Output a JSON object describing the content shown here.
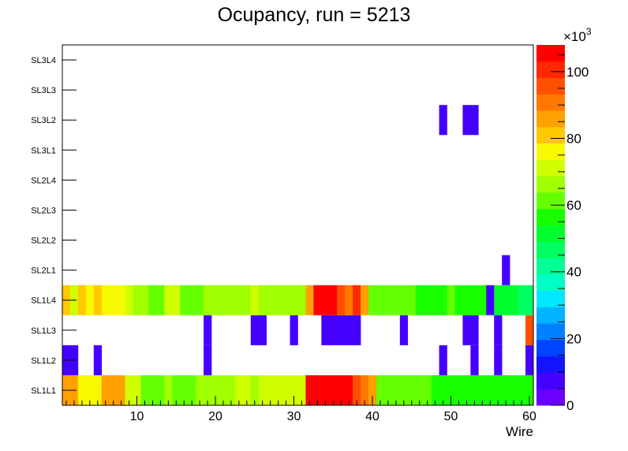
{
  "chart_data": {
    "type": "heatmap",
    "title": "Ocupancy, run = 5213",
    "xlabel": "Wire",
    "xlim": [
      0.5,
      60.5
    ],
    "x_ticks": [
      10,
      20,
      30,
      40,
      50,
      60
    ],
    "y_categories": [
      "SL1L1",
      "SL1L2",
      "SL1L3",
      "SL1L4",
      "SL2L1",
      "SL2L2",
      "SL2L3",
      "SL2L4",
      "SL3L1",
      "SL3L2",
      "SL3L3",
      "SL3L4"
    ],
    "zlim": [
      0,
      108000
    ],
    "z_ticks": [
      "0",
      "20",
      "40",
      "60",
      "80",
      "100"
    ],
    "z_exponent_base": "×10",
    "z_exponent_power": "3",
    "palette": [
      "#6a00ff",
      "#4400ff",
      "#1414ff",
      "#0044ff",
      "#0080ff",
      "#00b4ff",
      "#00e8ff",
      "#00ffc4",
      "#00ff94",
      "#00ff60",
      "#00ff2c",
      "#18ff00",
      "#64ff00",
      "#a0ff00",
      "#d0ff00",
      "#f8f800",
      "#ffc800",
      "#ffa000",
      "#ff7800",
      "#ff5000",
      "#ff2800",
      "#ff0000"
    ],
    "rows": {
      "SL1L1": [
        85,
        85,
        74,
        74,
        74,
        85,
        85,
        85,
        72,
        69,
        62,
        62,
        62,
        66,
        62,
        59,
        62,
        66,
        66,
        66,
        66,
        66,
        69,
        69,
        66,
        69,
        69,
        69,
        69,
        69,
        69,
        108,
        108,
        108,
        108,
        108,
        105,
        98,
        92,
        85,
        62,
        62,
        62,
        62,
        59,
        59,
        59,
        55,
        55,
        55,
        55,
        55,
        55,
        55,
        55,
        55,
        55,
        55,
        55,
        55
      ],
      "SL1L2": [
        5,
        5,
        0,
        0,
        5,
        0,
        0,
        0,
        0,
        0,
        0,
        0,
        0,
        0,
        0,
        0,
        0,
        0,
        5,
        0,
        0,
        0,
        0,
        0,
        0,
        0,
        0,
        0,
        0,
        0,
        0,
        0,
        0,
        0,
        0,
        0,
        0,
        0,
        0,
        0,
        0,
        0,
        0,
        0,
        0,
        0,
        0,
        0,
        5,
        0,
        0,
        0,
        5,
        0,
        0,
        5,
        0,
        0,
        0,
        5
      ],
      "SL1L3": [
        0,
        0,
        0,
        0,
        0,
        0,
        0,
        0,
        0,
        0,
        0,
        0,
        0,
        0,
        0,
        0,
        0,
        0,
        5,
        0,
        0,
        0,
        0,
        0,
        5,
        5,
        0,
        0,
        0,
        5,
        0,
        0,
        0,
        5,
        5,
        5,
        5,
        5,
        0,
        0,
        0,
        0,
        0,
        5,
        0,
        0,
        0,
        0,
        0,
        0,
        0,
        5,
        5,
        0,
        0,
        5,
        0,
        0,
        0,
        95
      ],
      "SL1L4": [
        80,
        72,
        80,
        74,
        80,
        74,
        74,
        74,
        69,
        66,
        66,
        62,
        62,
        69,
        69,
        62,
        62,
        62,
        66,
        66,
        66,
        66,
        66,
        66,
        69,
        66,
        66,
        66,
        66,
        66,
        66,
        85,
        105,
        105,
        108,
        98,
        92,
        102,
        85,
        62,
        62,
        62,
        62,
        59,
        59,
        55,
        55,
        55,
        55,
        59,
        55,
        55,
        55,
        55,
        5,
        52,
        52,
        52,
        45,
        45
      ],
      "SL2L1": [
        0,
        0,
        0,
        0,
        0,
        0,
        0,
        0,
        0,
        0,
        0,
        0,
        0,
        0,
        0,
        0,
        0,
        0,
        0,
        0,
        0,
        0,
        0,
        0,
        0,
        0,
        0,
        0,
        0,
        0,
        0,
        0,
        0,
        0,
        0,
        0,
        0,
        0,
        0,
        0,
        0,
        0,
        0,
        0,
        0,
        0,
        0,
        0,
        0,
        0,
        0,
        0,
        0,
        0,
        0,
        0,
        5,
        0,
        0,
        0
      ],
      "SL2L2": [
        0,
        0,
        0,
        0,
        0,
        0,
        0,
        0,
        0,
        0,
        0,
        0,
        0,
        0,
        0,
        0,
        0,
        0,
        0,
        0,
        0,
        0,
        0,
        0,
        0,
        0,
        0,
        0,
        0,
        0,
        0,
        0,
        0,
        0,
        0,
        0,
        0,
        0,
        0,
        0,
        0,
        0,
        0,
        0,
        0,
        0,
        0,
        0,
        0,
        0,
        0,
        0,
        0,
        0,
        0,
        0,
        0,
        0,
        0,
        0
      ],
      "SL2L3": [
        0,
        0,
        0,
        0,
        0,
        0,
        0,
        0,
        0,
        0,
        0,
        0,
        0,
        0,
        0,
        0,
        0,
        0,
        0,
        0,
        0,
        0,
        0,
        0,
        0,
        0,
        0,
        0,
        0,
        0,
        0,
        0,
        0,
        0,
        0,
        0,
        0,
        0,
        0,
        0,
        0,
        0,
        0,
        0,
        0,
        0,
        0,
        0,
        0,
        0,
        0,
        0,
        0,
        0,
        0,
        0,
        0,
        0,
        0,
        0
      ],
      "SL2L4": [
        0,
        0,
        0,
        0,
        0,
        0,
        0,
        0,
        0,
        0,
        0,
        0,
        0,
        0,
        0,
        0,
        0,
        0,
        0,
        0,
        0,
        0,
        0,
        0,
        0,
        0,
        0,
        0,
        0,
        0,
        0,
        0,
        0,
        0,
        0,
        0,
        0,
        0,
        0,
        0,
        0,
        0,
        0,
        0,
        0,
        0,
        0,
        0,
        0,
        0,
        0,
        0,
        0,
        0,
        0,
        0,
        0,
        0,
        0,
        0
      ],
      "SL3L1": [
        0,
        0,
        0,
        0,
        0,
        0,
        0,
        0,
        0,
        0,
        0,
        0,
        0,
        0,
        0,
        0,
        0,
        0,
        0,
        0,
        0,
        0,
        0,
        0,
        0,
        0,
        0,
        0,
        0,
        0,
        0,
        0,
        0,
        0,
        0,
        0,
        0,
        0,
        0,
        0,
        0,
        0,
        0,
        0,
        0,
        0,
        0,
        0,
        0,
        0,
        0,
        0,
        0,
        0,
        0,
        0,
        0,
        0,
        0,
        0
      ],
      "SL3L2": [
        0,
        0,
        0,
        0,
        0,
        0,
        0,
        0,
        0,
        0,
        0,
        0,
        0,
        0,
        0,
        0,
        0,
        0,
        0,
        0,
        0,
        0,
        0,
        0,
        0,
        0,
        0,
        0,
        0,
        0,
        0,
        0,
        0,
        0,
        0,
        0,
        0,
        0,
        0,
        0,
        0,
        0,
        0,
        0,
        0,
        0,
        0,
        0,
        5,
        0,
        0,
        5,
        5,
        0,
        0,
        0,
        0,
        0,
        0,
        0
      ],
      "SL3L3": [
        0,
        0,
        0,
        0,
        0,
        0,
        0,
        0,
        0,
        0,
        0,
        0,
        0,
        0,
        0,
        0,
        0,
        0,
        0,
        0,
        0,
        0,
        0,
        0,
        0,
        0,
        0,
        0,
        0,
        0,
        0,
        0,
        0,
        0,
        0,
        0,
        0,
        0,
        0,
        0,
        0,
        0,
        0,
        0,
        0,
        0,
        0,
        0,
        0,
        0,
        0,
        0,
        0,
        0,
        0,
        0,
        0,
        0,
        0,
        0
      ],
      "SL3L4": [
        0,
        0,
        0,
        0,
        0,
        0,
        0,
        0,
        0,
        0,
        0,
        0,
        0,
        0,
        0,
        0,
        0,
        0,
        0,
        0,
        0,
        0,
        0,
        0,
        0,
        0,
        0,
        0,
        0,
        0,
        0,
        0,
        0,
        0,
        0,
        0,
        0,
        0,
        0,
        0,
        0,
        0,
        0,
        0,
        0,
        0,
        0,
        0,
        0,
        0,
        0,
        0,
        0,
        0,
        0,
        0,
        0,
        0,
        0,
        0
      ]
    }
  }
}
